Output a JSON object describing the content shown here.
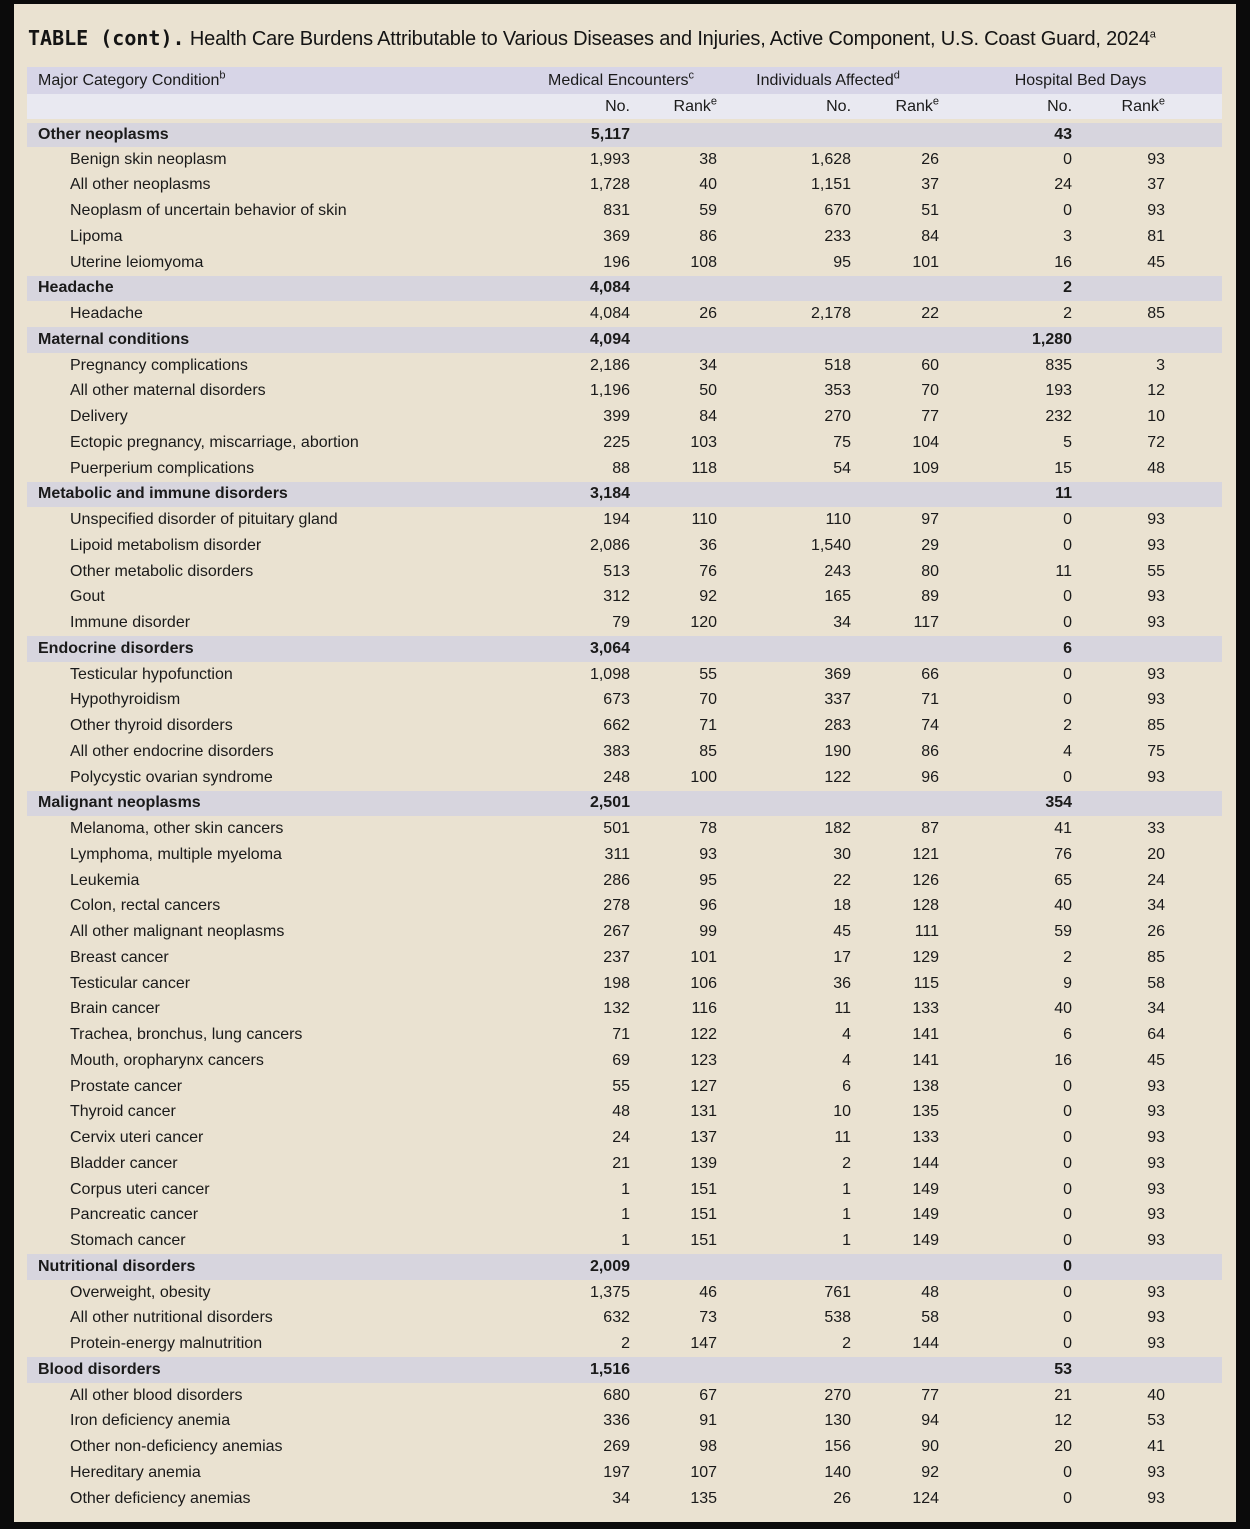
{
  "title": {
    "label": "TABLE (cont).",
    "text": "Health Care Burdens Attributable to Various Diseases and Injuries, Active Component, U.S. Coast Guard, 2024",
    "sup": "a"
  },
  "header": {
    "condition_label": "Major Category Condition",
    "condition_sup": "b",
    "groups": [
      {
        "label": "Medical Encounters",
        "sup": "c"
      },
      {
        "label": "Individuals Affected",
        "sup": "d"
      },
      {
        "label": "Hospital Bed Days",
        "sup": ""
      }
    ],
    "no_label": "No.",
    "rank_label": "Rank",
    "rank_sup": "e"
  },
  "colors": {
    "page_background": "#eae2d1",
    "header_band": "#d7d5e7",
    "subheader_band": "#e9e9f1",
    "category_band": "#d7d5de",
    "text": "#1a1a1a",
    "frame": "#0b0b0b"
  },
  "table": {
    "sections": [
      {
        "category": {
          "condition": "Other neoplasms",
          "me_no": "5,117",
          "me_rank": "",
          "ia_no": "",
          "ia_rank": "",
          "hbd_no": "43",
          "hbd_rank": ""
        },
        "rows": [
          {
            "condition": "Benign skin neoplasm",
            "me_no": "1,993",
            "me_rank": "38",
            "ia_no": "1,628",
            "ia_rank": "26",
            "hbd_no": "0",
            "hbd_rank": "93"
          },
          {
            "condition": "All other neoplasms",
            "me_no": "1,728",
            "me_rank": "40",
            "ia_no": "1,151",
            "ia_rank": "37",
            "hbd_no": "24",
            "hbd_rank": "37"
          },
          {
            "condition": "Neoplasm of uncertain behavior of skin",
            "me_no": "831",
            "me_rank": "59",
            "ia_no": "670",
            "ia_rank": "51",
            "hbd_no": "0",
            "hbd_rank": "93"
          },
          {
            "condition": "Lipoma",
            "me_no": "369",
            "me_rank": "86",
            "ia_no": "233",
            "ia_rank": "84",
            "hbd_no": "3",
            "hbd_rank": "81"
          },
          {
            "condition": "Uterine leiomyoma",
            "me_no": "196",
            "me_rank": "108",
            "ia_no": "95",
            "ia_rank": "101",
            "hbd_no": "16",
            "hbd_rank": "45"
          }
        ]
      },
      {
        "category": {
          "condition": "Headache",
          "me_no": "4,084",
          "me_rank": "",
          "ia_no": "",
          "ia_rank": "",
          "hbd_no": "2",
          "hbd_rank": ""
        },
        "rows": [
          {
            "condition": "Headache",
            "me_no": "4,084",
            "me_rank": "26",
            "ia_no": "2,178",
            "ia_rank": "22",
            "hbd_no": "2",
            "hbd_rank": "85"
          }
        ]
      },
      {
        "category": {
          "condition": "Maternal conditions",
          "me_no": "4,094",
          "me_rank": "",
          "ia_no": "",
          "ia_rank": "",
          "hbd_no": "1,280",
          "hbd_rank": ""
        },
        "rows": [
          {
            "condition": "Pregnancy complications",
            "me_no": "2,186",
            "me_rank": "34",
            "ia_no": "518",
            "ia_rank": "60",
            "hbd_no": "835",
            "hbd_rank": "3"
          },
          {
            "condition": "All other maternal disorders",
            "me_no": "1,196",
            "me_rank": "50",
            "ia_no": "353",
            "ia_rank": "70",
            "hbd_no": "193",
            "hbd_rank": "12"
          },
          {
            "condition": "Delivery",
            "me_no": "399",
            "me_rank": "84",
            "ia_no": "270",
            "ia_rank": "77",
            "hbd_no": "232",
            "hbd_rank": "10"
          },
          {
            "condition": "Ectopic pregnancy, miscarriage, abortion",
            "me_no": "225",
            "me_rank": "103",
            "ia_no": "75",
            "ia_rank": "104",
            "hbd_no": "5",
            "hbd_rank": "72"
          },
          {
            "condition": "Puerperium complications",
            "me_no": "88",
            "me_rank": "118",
            "ia_no": "54",
            "ia_rank": "109",
            "hbd_no": "15",
            "hbd_rank": "48"
          }
        ]
      },
      {
        "category": {
          "condition": "Metabolic and immune disorders",
          "me_no": "3,184",
          "me_rank": "",
          "ia_no": "",
          "ia_rank": "",
          "hbd_no": "11",
          "hbd_rank": ""
        },
        "rows": [
          {
            "condition": "Unspecified disorder of pituitary gland",
            "me_no": "194",
            "me_rank": "110",
            "ia_no": "110",
            "ia_rank": "97",
            "hbd_no": "0",
            "hbd_rank": "93"
          },
          {
            "condition": "Lipoid metabolism disorder",
            "me_no": "2,086",
            "me_rank": "36",
            "ia_no": "1,540",
            "ia_rank": "29",
            "hbd_no": "0",
            "hbd_rank": "93"
          },
          {
            "condition": "Other metabolic disorders",
            "me_no": "513",
            "me_rank": "76",
            "ia_no": "243",
            "ia_rank": "80",
            "hbd_no": "11",
            "hbd_rank": "55"
          },
          {
            "condition": "Gout",
            "me_no": "312",
            "me_rank": "92",
            "ia_no": "165",
            "ia_rank": "89",
            "hbd_no": "0",
            "hbd_rank": "93"
          },
          {
            "condition": "Immune disorder",
            "me_no": "79",
            "me_rank": "120",
            "ia_no": "34",
            "ia_rank": "117",
            "hbd_no": "0",
            "hbd_rank": "93"
          }
        ]
      },
      {
        "category": {
          "condition": "Endocrine disorders",
          "me_no": "3,064",
          "me_rank": "",
          "ia_no": "",
          "ia_rank": "",
          "hbd_no": "6",
          "hbd_rank": ""
        },
        "rows": [
          {
            "condition": "Testicular hypofunction",
            "me_no": "1,098",
            "me_rank": "55",
            "ia_no": "369",
            "ia_rank": "66",
            "hbd_no": "0",
            "hbd_rank": "93"
          },
          {
            "condition": "Hypothyroidism",
            "me_no": "673",
            "me_rank": "70",
            "ia_no": "337",
            "ia_rank": "71",
            "hbd_no": "0",
            "hbd_rank": "93"
          },
          {
            "condition": "Other thyroid disorders",
            "me_no": "662",
            "me_rank": "71",
            "ia_no": "283",
            "ia_rank": "74",
            "hbd_no": "2",
            "hbd_rank": "85"
          },
          {
            "condition": "All other endocrine disorders",
            "me_no": "383",
            "me_rank": "85",
            "ia_no": "190",
            "ia_rank": "86",
            "hbd_no": "4",
            "hbd_rank": "75"
          },
          {
            "condition": "Polycystic ovarian syndrome",
            "me_no": "248",
            "me_rank": "100",
            "ia_no": "122",
            "ia_rank": "96",
            "hbd_no": "0",
            "hbd_rank": "93"
          }
        ]
      },
      {
        "category": {
          "condition": "Malignant neoplasms",
          "me_no": "2,501",
          "me_rank": "",
          "ia_no": "",
          "ia_rank": "",
          "hbd_no": "354",
          "hbd_rank": ""
        },
        "rows": [
          {
            "condition": "Melanoma, other skin cancers",
            "me_no": "501",
            "me_rank": "78",
            "ia_no": "182",
            "ia_rank": "87",
            "hbd_no": "41",
            "hbd_rank": "33"
          },
          {
            "condition": "Lymphoma, multiple myeloma",
            "me_no": "311",
            "me_rank": "93",
            "ia_no": "30",
            "ia_rank": "121",
            "hbd_no": "76",
            "hbd_rank": "20"
          },
          {
            "condition": "Leukemia",
            "me_no": "286",
            "me_rank": "95",
            "ia_no": "22",
            "ia_rank": "126",
            "hbd_no": "65",
            "hbd_rank": "24"
          },
          {
            "condition": "Colon, rectal cancers",
            "me_no": "278",
            "me_rank": "96",
            "ia_no": "18",
            "ia_rank": "128",
            "hbd_no": "40",
            "hbd_rank": "34"
          },
          {
            "condition": "All other malignant neoplasms",
            "me_no": "267",
            "me_rank": "99",
            "ia_no": "45",
            "ia_rank": "111",
            "hbd_no": "59",
            "hbd_rank": "26"
          },
          {
            "condition": "Breast cancer",
            "me_no": "237",
            "me_rank": "101",
            "ia_no": "17",
            "ia_rank": "129",
            "hbd_no": "2",
            "hbd_rank": "85"
          },
          {
            "condition": "Testicular cancer",
            "me_no": "198",
            "me_rank": "106",
            "ia_no": "36",
            "ia_rank": "115",
            "hbd_no": "9",
            "hbd_rank": "58"
          },
          {
            "condition": "Brain cancer",
            "me_no": "132",
            "me_rank": "116",
            "ia_no": "11",
            "ia_rank": "133",
            "hbd_no": "40",
            "hbd_rank": "34"
          },
          {
            "condition": "Trachea, bronchus, lung cancers",
            "me_no": "71",
            "me_rank": "122",
            "ia_no": "4",
            "ia_rank": "141",
            "hbd_no": "6",
            "hbd_rank": "64"
          },
          {
            "condition": "Mouth, oropharynx cancers",
            "me_no": "69",
            "me_rank": "123",
            "ia_no": "4",
            "ia_rank": "141",
            "hbd_no": "16",
            "hbd_rank": "45"
          },
          {
            "condition": "Prostate cancer",
            "me_no": "55",
            "me_rank": "127",
            "ia_no": "6",
            "ia_rank": "138",
            "hbd_no": "0",
            "hbd_rank": "93"
          },
          {
            "condition": "Thyroid cancer",
            "me_no": "48",
            "me_rank": "131",
            "ia_no": "10",
            "ia_rank": "135",
            "hbd_no": "0",
            "hbd_rank": "93"
          },
          {
            "condition": "Cervix uteri cancer",
            "me_no": "24",
            "me_rank": "137",
            "ia_no": "11",
            "ia_rank": "133",
            "hbd_no": "0",
            "hbd_rank": "93"
          },
          {
            "condition": "Bladder cancer",
            "me_no": "21",
            "me_rank": "139",
            "ia_no": "2",
            "ia_rank": "144",
            "hbd_no": "0",
            "hbd_rank": "93"
          },
          {
            "condition": "Corpus uteri cancer",
            "me_no": "1",
            "me_rank": "151",
            "ia_no": "1",
            "ia_rank": "149",
            "hbd_no": "0",
            "hbd_rank": "93"
          },
          {
            "condition": "Pancreatic cancer",
            "me_no": "1",
            "me_rank": "151",
            "ia_no": "1",
            "ia_rank": "149",
            "hbd_no": "0",
            "hbd_rank": "93"
          },
          {
            "condition": "Stomach cancer",
            "me_no": "1",
            "me_rank": "151",
            "ia_no": "1",
            "ia_rank": "149",
            "hbd_no": "0",
            "hbd_rank": "93"
          }
        ]
      },
      {
        "category": {
          "condition": "Nutritional disorders",
          "me_no": "2,009",
          "me_rank": "",
          "ia_no": "",
          "ia_rank": "",
          "hbd_no": "0",
          "hbd_rank": ""
        },
        "rows": [
          {
            "condition": "Overweight, obesity",
            "me_no": "1,375",
            "me_rank": "46",
            "ia_no": "761",
            "ia_rank": "48",
            "hbd_no": "0",
            "hbd_rank": "93"
          },
          {
            "condition": "All other nutritional disorders",
            "me_no": "632",
            "me_rank": "73",
            "ia_no": "538",
            "ia_rank": "58",
            "hbd_no": "0",
            "hbd_rank": "93"
          },
          {
            "condition": "Protein-energy malnutrition",
            "me_no": "2",
            "me_rank": "147",
            "ia_no": "2",
            "ia_rank": "144",
            "hbd_no": "0",
            "hbd_rank": "93"
          }
        ]
      },
      {
        "category": {
          "condition": "Blood disorders",
          "me_no": "1,516",
          "me_rank": "",
          "ia_no": "",
          "ia_rank": "",
          "hbd_no": "53",
          "hbd_rank": ""
        },
        "rows": [
          {
            "condition": "All other blood disorders",
            "me_no": "680",
            "me_rank": "67",
            "ia_no": "270",
            "ia_rank": "77",
            "hbd_no": "21",
            "hbd_rank": "40"
          },
          {
            "condition": "Iron deficiency anemia",
            "me_no": "336",
            "me_rank": "91",
            "ia_no": "130",
            "ia_rank": "94",
            "hbd_no": "12",
            "hbd_rank": "53"
          },
          {
            "condition": "Other non-deficiency anemias",
            "me_no": "269",
            "me_rank": "98",
            "ia_no": "156",
            "ia_rank": "90",
            "hbd_no": "20",
            "hbd_rank": "41"
          },
          {
            "condition": "Hereditary anemia",
            "me_no": "197",
            "me_rank": "107",
            "ia_no": "140",
            "ia_rank": "92",
            "hbd_no": "0",
            "hbd_rank": "93"
          },
          {
            "condition": "Other deficiency anemias",
            "me_no": "34",
            "me_rank": "135",
            "ia_no": "26",
            "ia_rank": "124",
            "hbd_no": "0",
            "hbd_rank": "93"
          }
        ]
      }
    ]
  }
}
